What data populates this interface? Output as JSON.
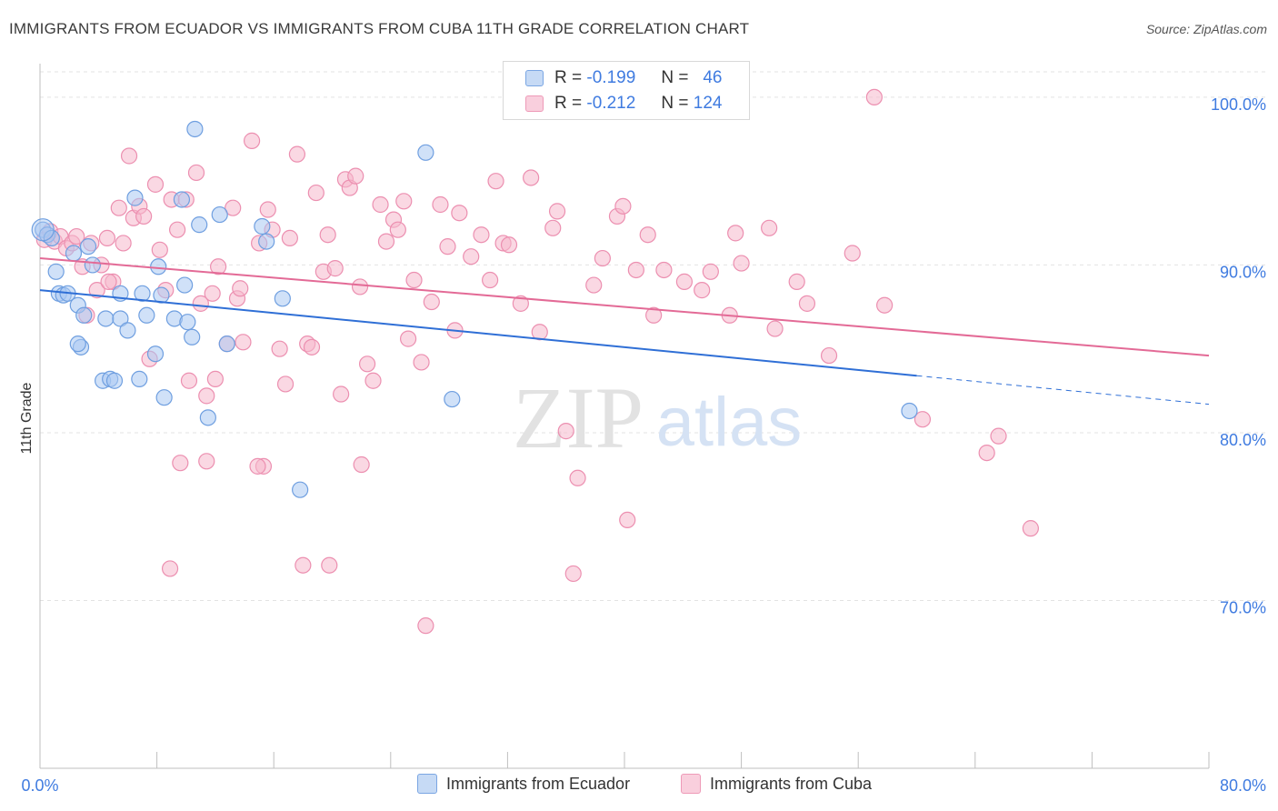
{
  "title": "IMMIGRANTS FROM ECUADOR VS IMMIGRANTS FROM CUBA 11TH GRADE CORRELATION CHART",
  "source": "Source: ZipAtlas.com",
  "watermark": {
    "zip": "ZIP",
    "atlas": "atlas"
  },
  "legend": {
    "ecuador": {
      "r_label": "R =",
      "r_value": "-0.199",
      "n_label": "N =",
      "n_value": "46"
    },
    "cuba": {
      "r_label": "R =",
      "r_value": "-0.212",
      "n_label": "N =",
      "n_value": "124"
    }
  },
  "bottom_legend": {
    "ecuador": "Immigrants from Ecuador",
    "cuba": "Immigrants from Cuba"
  },
  "colors": {
    "ecuador_fill": "#a9c8f2",
    "ecuador_stroke": "#6f9fe0",
    "ecuador_line": "#2f6fd6",
    "cuba_fill": "#f6b8cc",
    "cuba_stroke": "#ec8fb0",
    "cuba_line": "#e36a96",
    "axis_text": "#3f7be0",
    "grid": "#e3e3e3"
  },
  "chart_data": {
    "type": "scatter",
    "title": "IMMIGRANTS FROM ECUADOR VS IMMIGRANTS FROM CUBA 11TH GRADE CORRELATION CHART",
    "xlabel": "",
    "ylabel": "11th Grade",
    "xlim": [
      0,
      80
    ],
    "ylim": [
      60,
      102
    ],
    "x_tick_labels": [
      "0.0%",
      "80.0%"
    ],
    "y_ticks": [
      70,
      80,
      90,
      100
    ],
    "y_tick_labels": [
      "70.0%",
      "80.0%",
      "90.0%",
      "100.0%"
    ],
    "grid": true,
    "legend_position": "top-center",
    "series": [
      {
        "name": "Immigrants from Ecuador",
        "points": [
          [
            0.2,
            92.1
          ],
          [
            0.5,
            91.8
          ],
          [
            0.8,
            91.6
          ],
          [
            1.1,
            89.6
          ],
          [
            1.3,
            88.3
          ],
          [
            1.6,
            88.2
          ],
          [
            1.9,
            88.3
          ],
          [
            2.3,
            90.7
          ],
          [
            2.6,
            87.6
          ],
          [
            2.8,
            85.1
          ],
          [
            3.0,
            87.0
          ],
          [
            3.3,
            91.1
          ],
          [
            3.6,
            90.0
          ],
          [
            2.6,
            85.3
          ],
          [
            4.5,
            86.8
          ],
          [
            4.3,
            83.1
          ],
          [
            4.8,
            83.2
          ],
          [
            5.1,
            83.1
          ],
          [
            5.5,
            88.3
          ],
          [
            5.5,
            86.8
          ],
          [
            6.0,
            86.1
          ],
          [
            6.5,
            94.0
          ],
          [
            6.8,
            83.2
          ],
          [
            7.0,
            88.3
          ],
          [
            7.3,
            87.0
          ],
          [
            7.9,
            84.7
          ],
          [
            8.1,
            89.9
          ],
          [
            8.3,
            88.2
          ],
          [
            8.5,
            82.1
          ],
          [
            9.2,
            86.8
          ],
          [
            9.7,
            93.9
          ],
          [
            9.9,
            88.8
          ],
          [
            10.1,
            86.6
          ],
          [
            10.4,
            85.7
          ],
          [
            10.6,
            98.1
          ],
          [
            10.9,
            92.4
          ],
          [
            11.5,
            80.9
          ],
          [
            12.3,
            93.0
          ],
          [
            12.8,
            85.3
          ],
          [
            15.2,
            92.3
          ],
          [
            15.5,
            91.4
          ],
          [
            16.6,
            88.0
          ],
          [
            26.4,
            96.7
          ],
          [
            28.2,
            82.0
          ],
          [
            17.8,
            76.6
          ],
          [
            59.5,
            81.3
          ]
        ],
        "trend": {
          "x1": 0,
          "y1": 88.5,
          "x2": 60,
          "y2": 83.4,
          "dash_to_x": 80,
          "dash_to_y": 81.7
        }
      },
      {
        "name": "Immigrants from Cuba",
        "points": [
          [
            0.3,
            91.5
          ],
          [
            0.7,
            92.0
          ],
          [
            1.0,
            91.4
          ],
          [
            1.4,
            91.7
          ],
          [
            1.8,
            91.0
          ],
          [
            2.2,
            91.3
          ],
          [
            2.5,
            91.7
          ],
          [
            2.9,
            89.9
          ],
          [
            3.2,
            87.0
          ],
          [
            3.5,
            91.3
          ],
          [
            3.9,
            88.5
          ],
          [
            4.2,
            90.0
          ],
          [
            4.6,
            91.6
          ],
          [
            5.0,
            89.0
          ],
          [
            5.4,
            93.4
          ],
          [
            5.7,
            91.3
          ],
          [
            6.1,
            96.5
          ],
          [
            6.4,
            92.8
          ],
          [
            6.8,
            93.5
          ],
          [
            7.1,
            92.9
          ],
          [
            7.5,
            84.4
          ],
          [
            7.9,
            94.8
          ],
          [
            8.2,
            90.9
          ],
          [
            8.6,
            88.5
          ],
          [
            9.0,
            93.9
          ],
          [
            9.4,
            92.1
          ],
          [
            9.6,
            78.2
          ],
          [
            10.0,
            93.9
          ],
          [
            10.2,
            83.1
          ],
          [
            10.7,
            95.5
          ],
          [
            11.0,
            87.7
          ],
          [
            11.4,
            82.2
          ],
          [
            11.8,
            88.3
          ],
          [
            12.0,
            83.2
          ],
          [
            12.2,
            89.9
          ],
          [
            12.8,
            85.3
          ],
          [
            13.2,
            93.4
          ],
          [
            13.5,
            88.0
          ],
          [
            13.7,
            88.6
          ],
          [
            13.9,
            85.4
          ],
          [
            14.5,
            97.4
          ],
          [
            15.0,
            91.3
          ],
          [
            15.3,
            78.0
          ],
          [
            15.6,
            93.3
          ],
          [
            15.9,
            92.1
          ],
          [
            16.4,
            85.0
          ],
          [
            16.8,
            82.9
          ],
          [
            17.1,
            91.6
          ],
          [
            17.6,
            96.6
          ],
          [
            18.0,
            72.1
          ],
          [
            18.3,
            85.3
          ],
          [
            18.6,
            85.1
          ],
          [
            18.9,
            94.3
          ],
          [
            19.4,
            89.6
          ],
          [
            19.7,
            91.8
          ],
          [
            20.2,
            89.8
          ],
          [
            20.6,
            82.3
          ],
          [
            20.9,
            95.1
          ],
          [
            21.2,
            94.6
          ],
          [
            21.6,
            95.3
          ],
          [
            21.9,
            88.7
          ],
          [
            22.4,
            84.1
          ],
          [
            22.8,
            83.1
          ],
          [
            23.3,
            93.6
          ],
          [
            23.7,
            91.4
          ],
          [
            24.2,
            92.7
          ],
          [
            24.5,
            92.1
          ],
          [
            24.9,
            93.8
          ],
          [
            25.2,
            85.6
          ],
          [
            25.6,
            89.1
          ],
          [
            26.1,
            84.2
          ],
          [
            26.4,
            68.5
          ],
          [
            26.8,
            87.8
          ],
          [
            27.4,
            93.6
          ],
          [
            27.9,
            91.1
          ],
          [
            28.4,
            86.1
          ],
          [
            28.7,
            93.1
          ],
          [
            29.5,
            90.5
          ],
          [
            30.2,
            91.8
          ],
          [
            30.8,
            89.1
          ],
          [
            31.2,
            95.0
          ],
          [
            31.7,
            91.3
          ],
          [
            32.1,
            91.2
          ],
          [
            32.9,
            87.7
          ],
          [
            33.6,
            95.2
          ],
          [
            34.2,
            86.0
          ],
          [
            35.1,
            92.2
          ],
          [
            35.4,
            93.2
          ],
          [
            36.0,
            80.1
          ],
          [
            36.8,
            77.3
          ],
          [
            36.5,
            71.6
          ],
          [
            37.9,
            88.8
          ],
          [
            38.5,
            90.4
          ],
          [
            39.5,
            92.9
          ],
          [
            39.9,
            93.5
          ],
          [
            40.2,
            74.8
          ],
          [
            40.8,
            89.7
          ],
          [
            41.6,
            91.8
          ],
          [
            42.0,
            87.0
          ],
          [
            42.7,
            89.7
          ],
          [
            44.1,
            89.0
          ],
          [
            45.3,
            88.5
          ],
          [
            45.9,
            89.6
          ],
          [
            47.2,
            87.0
          ],
          [
            47.6,
            91.9
          ],
          [
            48.0,
            90.1
          ],
          [
            49.9,
            92.2
          ],
          [
            50.3,
            86.2
          ],
          [
            51.8,
            89.0
          ],
          [
            52.5,
            87.7
          ],
          [
            54.0,
            84.6
          ],
          [
            55.6,
            90.7
          ],
          [
            57.1,
            100.0
          ],
          [
            57.8,
            87.6
          ],
          [
            60.4,
            80.8
          ],
          [
            64.8,
            78.8
          ],
          [
            65.6,
            79.8
          ],
          [
            67.8,
            74.3
          ],
          [
            22.0,
            78.1
          ],
          [
            11.4,
            78.3
          ],
          [
            8.9,
            71.9
          ],
          [
            14.9,
            78.0
          ],
          [
            19.8,
            72.1
          ],
          [
            4.7,
            89.0
          ]
        ],
        "trend": {
          "x1": 0,
          "y1": 90.4,
          "x2": 80,
          "y2": 84.6
        }
      }
    ]
  }
}
